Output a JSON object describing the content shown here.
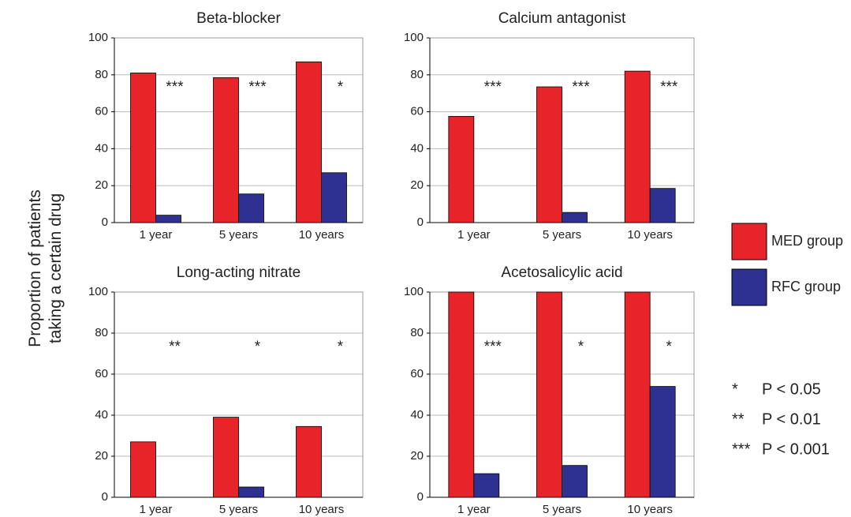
{
  "y_label": [
    "Proportion of patients",
    "taking a certain drug"
  ],
  "legend": [
    {
      "name": "MED group",
      "color": "#e8242b"
    },
    {
      "name": "RFC group",
      "color": "#2e3192"
    }
  ],
  "significance_key": [
    {
      "symbol": "*",
      "label": "P < 0.05"
    },
    {
      "symbol": "**",
      "label": "P < 0.01"
    },
    {
      "symbol": "***",
      "label": "P < 0.001"
    }
  ],
  "chart_data": [
    {
      "type": "bar",
      "title": "Beta-blocker",
      "categories": [
        "1 year",
        "5 years",
        "10 years"
      ],
      "series": [
        {
          "values": [
            81,
            78.5,
            87
          ]
        },
        {
          "values": [
            4,
            15.5,
            27
          ]
        }
      ],
      "annotations": [
        "***",
        "***",
        "*"
      ],
      "ylim": [
        0,
        100
      ],
      "yticks": [
        0,
        20,
        40,
        60,
        80,
        100
      ],
      "grid": true
    },
    {
      "type": "bar",
      "title": "Calcium antagonist",
      "categories": [
        "1 year",
        "5 years",
        "10 years"
      ],
      "series": [
        {
          "values": [
            57.5,
            73.5,
            82
          ]
        },
        {
          "values": [
            0,
            5.5,
            18.5
          ]
        }
      ],
      "annotations": [
        "***",
        "***",
        "***"
      ],
      "ylim": [
        0,
        100
      ],
      "yticks": [
        0,
        20,
        40,
        60,
        80,
        100
      ],
      "grid": true
    },
    {
      "type": "bar",
      "title": "Long-acting nitrate",
      "categories": [
        "1 year",
        "5 years",
        "10 years"
      ],
      "series": [
        {
          "values": [
            27,
            39,
            34.5
          ]
        },
        {
          "values": [
            0,
            5,
            0
          ]
        }
      ],
      "annotations": [
        "**",
        "*",
        "*"
      ],
      "ylim": [
        0,
        100
      ],
      "yticks": [
        0,
        20,
        40,
        60,
        80,
        100
      ],
      "grid": true
    },
    {
      "type": "bar",
      "title": "Acetosalicylic acid",
      "categories": [
        "1 year",
        "5 years",
        "10 years"
      ],
      "series": [
        {
          "values": [
            100,
            100,
            100
          ]
        },
        {
          "values": [
            11.5,
            15.5,
            54
          ]
        }
      ],
      "annotations": [
        "***",
        "*",
        "*"
      ],
      "ylim": [
        0,
        100
      ],
      "yticks": [
        0,
        20,
        40,
        60,
        80,
        100
      ],
      "grid": true
    }
  ]
}
